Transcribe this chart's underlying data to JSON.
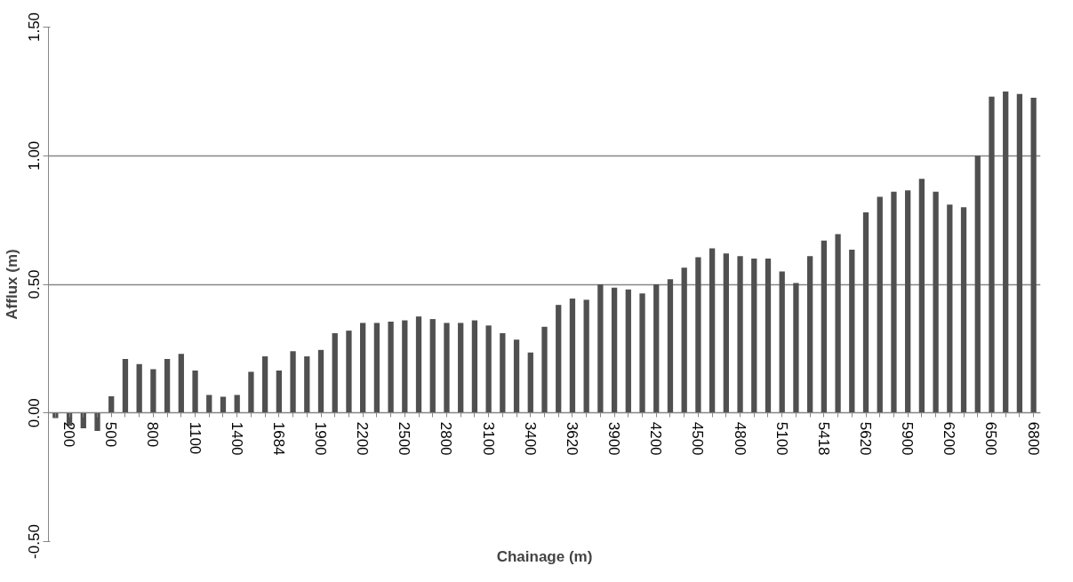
{
  "chart_data": {
    "type": "bar",
    "xlabel": "Chainage (m)",
    "ylabel": "Afflux (m)",
    "categories": [
      null,
      "200",
      null,
      null,
      "500",
      null,
      null,
      "800",
      null,
      null,
      "1100",
      null,
      null,
      "1400",
      null,
      null,
      "1684",
      null,
      null,
      "1900",
      null,
      null,
      "2200",
      null,
      null,
      "2500",
      null,
      null,
      "2800",
      null,
      null,
      "3100",
      null,
      null,
      "3400",
      null,
      null,
      "3620",
      null,
      null,
      "3900",
      null,
      null,
      "4200",
      null,
      null,
      "4500",
      null,
      null,
      "4800",
      null,
      null,
      "5100",
      null,
      null,
      "5418",
      null,
      null,
      "5620",
      null,
      null,
      "5900",
      null,
      null,
      "6200",
      null,
      null,
      "6500",
      null,
      null,
      "6800"
    ],
    "values": [
      -0.02,
      -0.05,
      -0.06,
      -0.07,
      0.065,
      0.21,
      0.19,
      0.17,
      0.21,
      0.23,
      0.165,
      0.07,
      0.063,
      0.07,
      0.16,
      0.22,
      0.165,
      0.24,
      0.22,
      0.245,
      0.31,
      0.32,
      0.35,
      0.35,
      0.355,
      0.36,
      0.375,
      0.365,
      0.35,
      0.35,
      0.36,
      0.34,
      0.31,
      0.285,
      0.235,
      0.335,
      0.42,
      0.445,
      0.44,
      0.5,
      0.487,
      0.48,
      0.465,
      0.5,
      0.52,
      0.565,
      0.605,
      0.64,
      0.62,
      0.61,
      0.6,
      0.6,
      0.55,
      0.505,
      0.61,
      0.67,
      0.695,
      0.635,
      0.78,
      0.84,
      0.86,
      0.865,
      0.91,
      0.86,
      0.81,
      0.8,
      1.0,
      1.23,
      1.25,
      1.24,
      1.225
    ],
    "color": "#505050",
    "ylim": [
      -0.5,
      1.5
    ],
    "yticks": [
      {
        "value": -0.5,
        "label": "-0.50"
      },
      {
        "value": 0,
        "label": "0.00"
      },
      {
        "value": 0.5,
        "label": "0.50"
      },
      {
        "value": 1.0,
        "label": "1.00"
      },
      {
        "value": 1.5,
        "label": "1.50"
      }
    ],
    "grid": "y"
  }
}
